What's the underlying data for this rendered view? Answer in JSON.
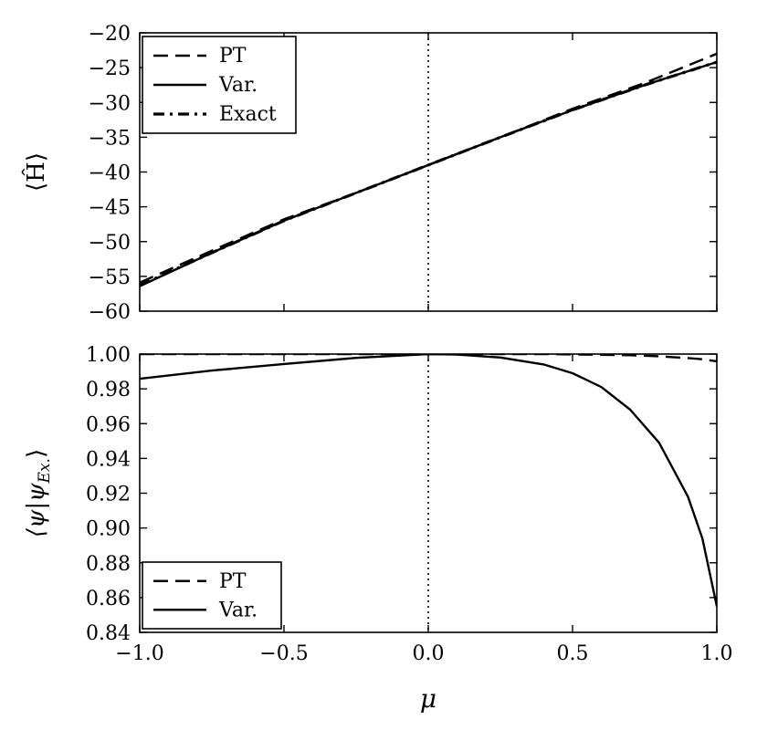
{
  "chart_data": [
    {
      "type": "line",
      "ylabel": "⟨Ĥ⟩",
      "xlim": [
        -1.0,
        1.0
      ],
      "ylim": [
        -60,
        -20
      ],
      "xticks": [
        "−1.0",
        "−0.5",
        "0.0",
        "0.5",
        "1.0"
      ],
      "yticks": [
        "−60",
        "−55",
        "−50",
        "−45",
        "−40",
        "−35",
        "−30",
        "−25",
        "−20"
      ],
      "xtick_values": [
        -1.0,
        -0.5,
        0.0,
        0.5,
        1.0
      ],
      "ytick_values": [
        -60,
        -55,
        -50,
        -45,
        -40,
        -35,
        -30,
        -25,
        -20
      ],
      "show_xtick_labels": false,
      "vline_x": 0.0,
      "legend_position": "top-left",
      "x": [
        -1.0,
        -0.75,
        -0.5,
        -0.25,
        0.0,
        0.25,
        0.5,
        0.75,
        1.0
      ],
      "series": [
        {
          "name": "PT",
          "style": "dashed",
          "values": [
            -55.9,
            -51.3,
            -46.8,
            -43.0,
            -39.0,
            -35.0,
            -30.9,
            -27.2,
            -23.0
          ]
        },
        {
          "name": "Var.",
          "style": "solid",
          "values": [
            -56.4,
            -51.6,
            -47.0,
            -43.0,
            -39.0,
            -35.0,
            -31.1,
            -27.5,
            -24.2
          ]
        },
        {
          "name": "Exact",
          "style": "dashdot",
          "values": [
            -56.3,
            -51.6,
            -47.0,
            -43.0,
            -39.0,
            -35.0,
            -31.1,
            -27.5,
            -24.2
          ]
        }
      ]
    },
    {
      "type": "line",
      "ylabel": "⟨ψ|ψ_Ex.⟩",
      "xlabel": "μ",
      "xlim": [
        -1.0,
        1.0
      ],
      "ylim": [
        0.84,
        1.0
      ],
      "xticks": [
        "−1.0",
        "−0.5",
        "0.0",
        "0.5",
        "1.0"
      ],
      "yticks": [
        "0.84",
        "0.86",
        "0.88",
        "0.90",
        "0.92",
        "0.94",
        "0.96",
        "0.98",
        "1.00"
      ],
      "xtick_values": [
        -1.0,
        -0.5,
        0.0,
        0.5,
        1.0
      ],
      "ytick_values": [
        0.84,
        0.86,
        0.88,
        0.9,
        0.92,
        0.94,
        0.96,
        0.98,
        1.0
      ],
      "show_xtick_labels": true,
      "vline_x": 0.0,
      "legend_position": "bottom-left",
      "x": [
        -1.0,
        -0.75,
        -0.5,
        -0.25,
        0.0,
        0.1,
        0.25,
        0.4,
        0.5,
        0.6,
        0.7,
        0.8,
        0.9,
        0.95,
        1.0
      ],
      "series": [
        {
          "name": "PT",
          "style": "dashed",
          "values": [
            1.0,
            1.0,
            1.0,
            1.0,
            1.0,
            1.0,
            1.0,
            1.0,
            0.9998,
            0.9996,
            0.9993,
            0.9987,
            0.9977,
            0.997,
            0.9958
          ]
        },
        {
          "name": "Var.",
          "style": "solid",
          "values": [
            0.9858,
            0.9905,
            0.9943,
            0.9978,
            1.0,
            0.9997,
            0.998,
            0.994,
            0.989,
            0.981,
            0.968,
            0.949,
            0.918,
            0.894,
            0.855
          ]
        }
      ]
    }
  ]
}
